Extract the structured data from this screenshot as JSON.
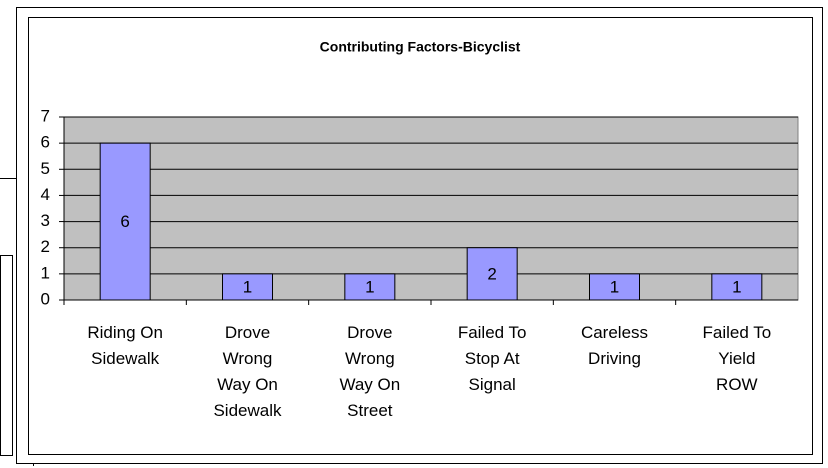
{
  "chart_data": {
    "type": "bar",
    "title": "Contributing Factors-Bicyclist",
    "categories": [
      "Riding On Sidewalk",
      "Drove Wrong Way On Sidewalk",
      "Drove Wrong Way On Street",
      "Failed To Stop At Signal",
      "Careless Driving",
      "Failed To Yield ROW"
    ],
    "values": [
      6,
      1,
      1,
      2,
      1,
      1
    ],
    "color": "#9999ff",
    "ylim": [
      0,
      7
    ],
    "yticks": [
      0,
      1,
      2,
      3,
      4,
      5,
      6,
      7
    ],
    "grid": true,
    "plot_background": "#c0c0c0"
  }
}
